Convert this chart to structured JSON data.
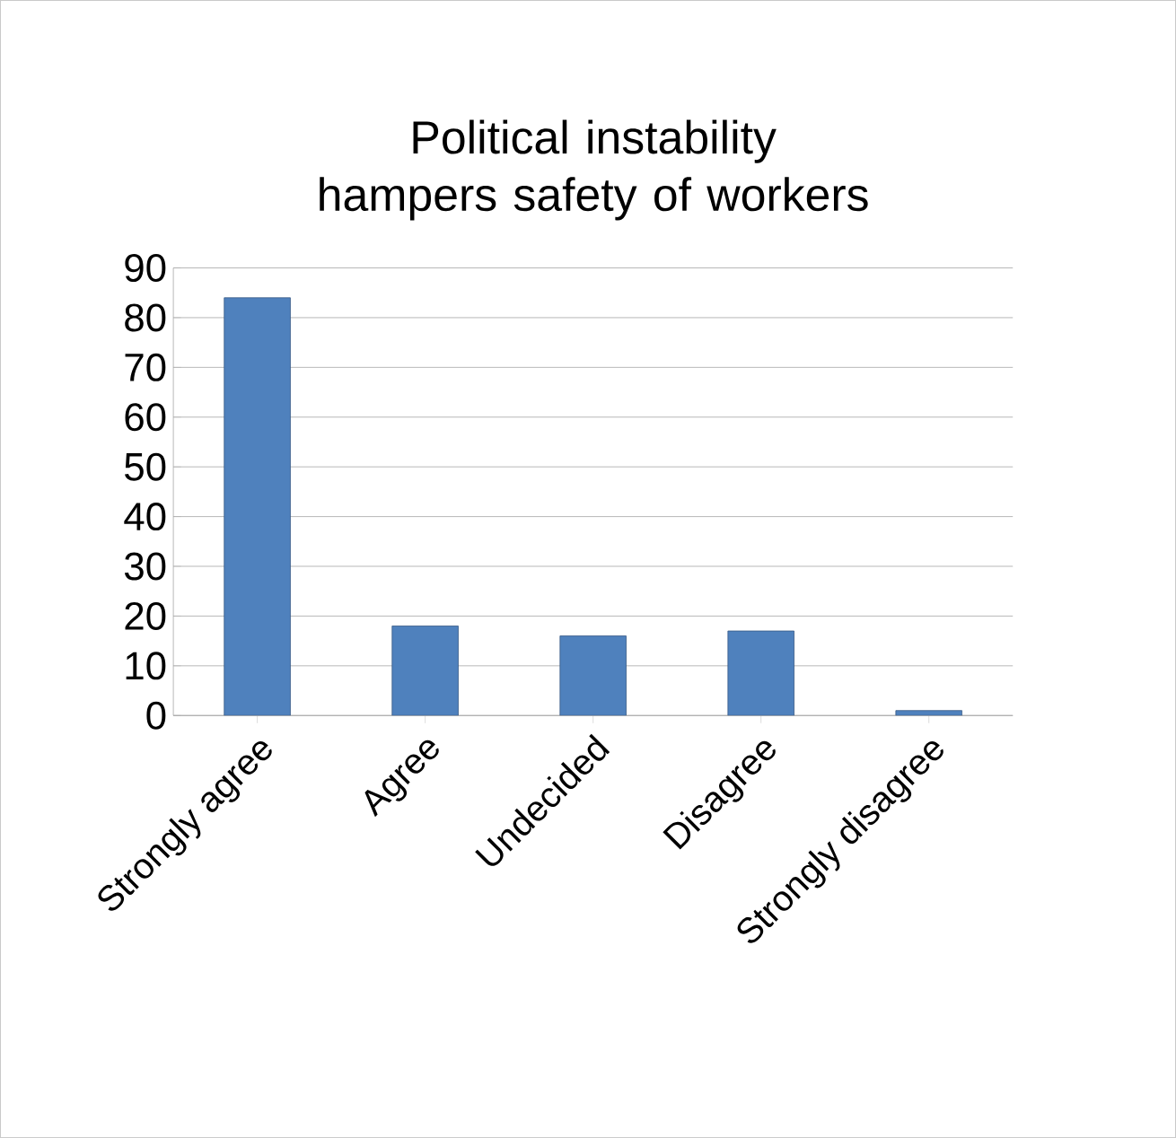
{
  "chart_data": {
    "type": "bar",
    "title": "Political instability hampers safety of workers",
    "categories": [
      "Strongly agree",
      "Agree",
      "Undecided",
      "Disagree",
      "Strongly disagree"
    ],
    "values": [
      84,
      18,
      16,
      17,
      1
    ],
    "color": "#4f81bd",
    "ylim": [
      0,
      90
    ],
    "yticks": [
      0,
      10,
      20,
      30,
      40,
      50,
      60,
      70,
      80,
      90
    ],
    "grid": "y"
  }
}
